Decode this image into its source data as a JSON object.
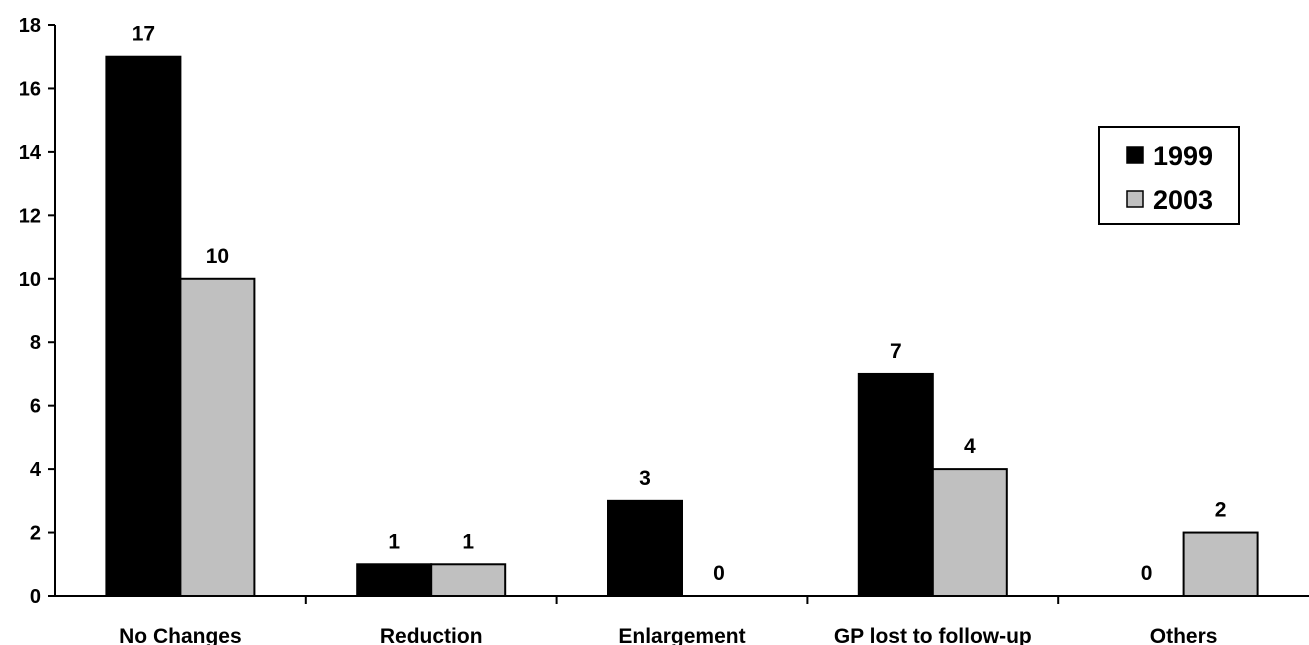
{
  "chart_data": {
    "type": "bar",
    "title": "",
    "xlabel": "",
    "ylabel": "",
    "categories": [
      "No Changes",
      "Reduction",
      "Enlargement",
      "GP lost to follow-up",
      "Others"
    ],
    "series": [
      {
        "name": "1999",
        "values": [
          17,
          1,
          3,
          7,
          0
        ],
        "color": "#000000"
      },
      {
        "name": "2003",
        "values": [
          10,
          1,
          0,
          4,
          2
        ],
        "color": "#c0c0c0"
      }
    ],
    "ylim": [
      0,
      18
    ],
    "yticks": [
      0,
      2,
      4,
      6,
      8,
      10,
      12,
      14,
      16,
      18
    ],
    "grid": false,
    "legend_position": "right",
    "data_labels": true
  }
}
